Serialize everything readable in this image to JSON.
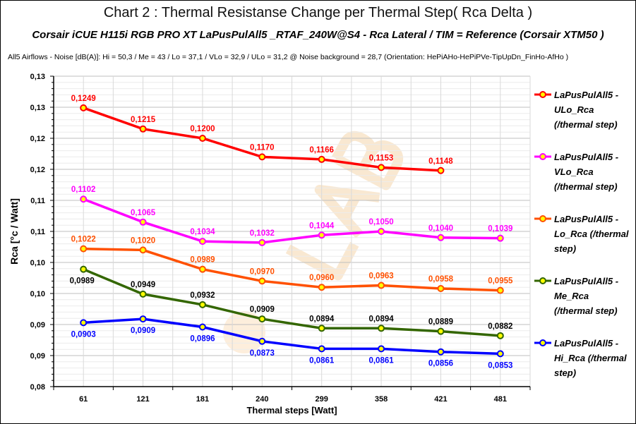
{
  "title": "Chart 2 : Thermal Resistanse Change per Thermal Step( Rca  Delta )",
  "subtitle": "Corsair iCUE H115i RGB PRO XT  LaPusPulAll5 _RTAF_240W@S4  -  Rca Lateral    /  TIM =  Reference   (Corsair XTM50 )",
  "noise_line": "All5  Airflows -  Noise [dB(A)]: Hi = 50,3 / Me = 43 / Lo = 37,1 / VLo = 32,9 / ULo = 31,2 @ Noise background = 28,7   (Orientation: HePiAHo-HePiPVe-TipUpDn_FinHo-AfHo )",
  "watermark": "LAB",
  "chart_data": {
    "type": "line",
    "xlabel": "Thermal steps  [Watt]",
    "ylabel": "Rca   [°c / Watt]",
    "categories": [
      "61",
      "121",
      "181",
      "240",
      "299",
      "358",
      "421",
      "481"
    ],
    "ylim": [
      0.08,
      0.13
    ],
    "ytick_labels": [
      "0,08",
      "0,09",
      "0,09",
      "0,10",
      "0,10",
      "0,11",
      "0,11",
      "0,12",
      "0,12",
      "0,13",
      "0,13"
    ],
    "grid": true,
    "legend_position": "right",
    "marker_fill": "#ffff00",
    "series": [
      {
        "name": "LaPusPulAll5 - ULo_Rca (/thermal step)",
        "color": "#ff0000",
        "values": [
          0.1249,
          0.1215,
          0.12,
          0.117,
          0.1166,
          0.1153,
          0.1148,
          null
        ],
        "labels": [
          "0,1249",
          "0,1215",
          "0,1200",
          "0,1170",
          "0,1166",
          "0,1153",
          "0,1148",
          ""
        ]
      },
      {
        "name": "LaPusPulAll5 - VLo_Rca (/thermal step)",
        "color": "#ff00ff",
        "values": [
          0.1102,
          0.1065,
          0.1034,
          0.1032,
          0.1044,
          0.105,
          0.104,
          0.1039
        ],
        "labels": [
          "0,1102",
          "0,1065",
          "0,1034",
          "0,1032",
          "0,1044",
          "0,1050",
          "0,1040",
          "0,1039"
        ]
      },
      {
        "name": "LaPusPulAll5 - Lo_Rca (/thermal step)",
        "color": "#ff5000",
        "values": [
          0.1022,
          0.102,
          0.0989,
          0.097,
          0.096,
          0.0963,
          0.0958,
          0.0955
        ],
        "labels": [
          "0,1022",
          "0,1020",
          "0,0989",
          "0,0970",
          "0,0960",
          "0,0963",
          "0,0958",
          "0,0955"
        ]
      },
      {
        "name": "LaPusPulAll5 - Me_Rca (/thermal step)",
        "color": "#336600",
        "values": [
          0.0989,
          0.0949,
          0.0932,
          0.0909,
          0.0894,
          0.0894,
          0.0889,
          0.0882
        ],
        "labels": [
          "0,0989",
          "0,0949",
          "0,0932",
          "0,0909",
          "0,0894",
          "0,0894",
          "0,0889",
          "0,0882"
        ]
      },
      {
        "name": "LaPusPulAll5 - Hi_Rca (/thermal step)",
        "color": "#0000ff",
        "values": [
          0.0903,
          0.0909,
          0.0896,
          0.0873,
          0.0861,
          0.0861,
          0.0856,
          0.0853
        ],
        "labels": [
          "0,0903",
          "0,0909",
          "0,0896",
          "0,0873",
          "0,0861",
          "0,0861",
          "0,0856",
          "0,0853"
        ]
      }
    ]
  }
}
